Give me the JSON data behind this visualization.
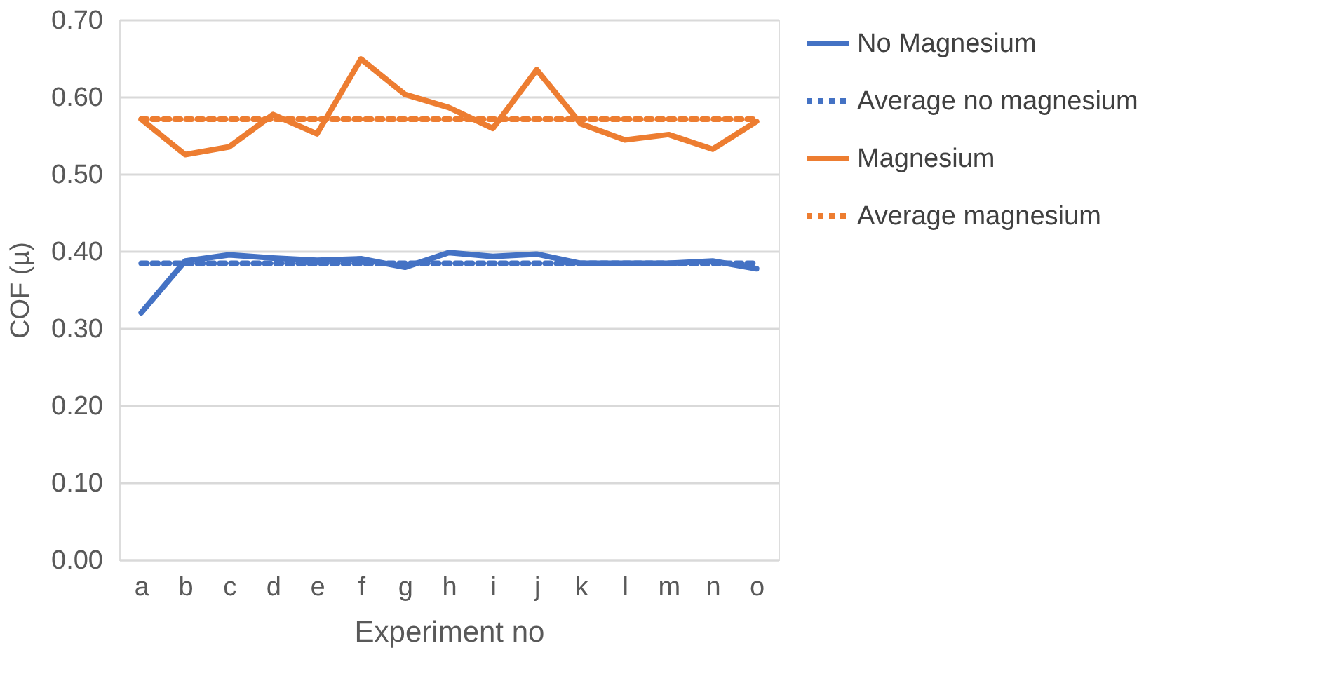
{
  "chart_data": {
    "type": "line",
    "xlabel": "Experiment no",
    "ylabel": "COF (µ)",
    "categories": [
      "a",
      "b",
      "c",
      "d",
      "e",
      "f",
      "g",
      "h",
      "i",
      "j",
      "k",
      "l",
      "m",
      "n",
      "o"
    ],
    "series": [
      {
        "name": "No Magnesium",
        "color": "#4472c4",
        "line_style": "solid",
        "values": [
          0.32,
          0.387,
          0.395,
          0.391,
          0.388,
          0.39,
          0.379,
          0.398,
          0.393,
          0.396,
          0.384,
          0.384,
          0.384,
          0.387,
          0.377
        ]
      },
      {
        "name": "Average no magnesium",
        "color": "#4472c4",
        "line_style": "dotted",
        "values": [
          0.384,
          0.384,
          0.384,
          0.384,
          0.384,
          0.384,
          0.384,
          0.384,
          0.384,
          0.384,
          0.384,
          0.384,
          0.384,
          0.384,
          0.384
        ]
      },
      {
        "name": "Magnesium",
        "color": "#ed7d31",
        "line_style": "solid",
        "values": [
          0.571,
          0.525,
          0.535,
          0.577,
          0.552,
          0.649,
          0.603,
          0.586,
          0.559,
          0.635,
          0.565,
          0.544,
          0.551,
          0.532,
          0.568
        ]
      },
      {
        "name": "Average magnesium",
        "color": "#ed7d31",
        "line_style": "dotted",
        "values": [
          0.571,
          0.571,
          0.571,
          0.571,
          0.571,
          0.571,
          0.571,
          0.571,
          0.571,
          0.571,
          0.571,
          0.571,
          0.571,
          0.571,
          0.571
        ]
      }
    ],
    "ylim": [
      0,
      0.7
    ],
    "yticks": [
      {
        "value": 0,
        "label": "0.00"
      },
      {
        "value": 0.1,
        "label": "0.10"
      },
      {
        "value": 0.2,
        "label": "0.20"
      },
      {
        "value": 0.3,
        "label": "0.30"
      },
      {
        "value": 0.4,
        "label": "0.40"
      },
      {
        "value": 0.5,
        "label": "0.50"
      },
      {
        "value": 0.6,
        "label": "0.60"
      },
      {
        "value": 0.7,
        "label": "0.70"
      }
    ],
    "grid": "y",
    "legend": "right",
    "marker": "none"
  }
}
